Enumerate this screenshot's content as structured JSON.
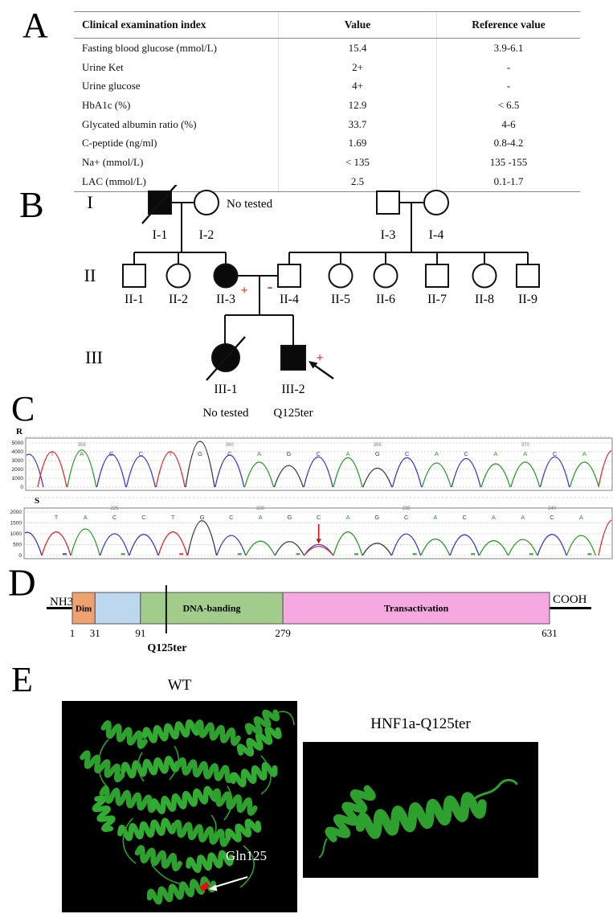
{
  "panels": {
    "a": "A",
    "b": "B",
    "c": "C",
    "d": "D",
    "e": "E"
  },
  "table": {
    "headers": [
      "Clinical examination index",
      "Value",
      "Reference value"
    ],
    "rows": [
      [
        "Fasting blood glucose (mmol/L)",
        "15.4",
        "3.9-6.1"
      ],
      [
        "Urine Ket",
        "2+",
        "-"
      ],
      [
        "Urine glucose",
        "4+",
        "-"
      ],
      [
        "HbA1c (%)",
        "12.9",
        "< 6.5"
      ],
      [
        "Glycated albumin ratio (%)",
        "33.7",
        "4-6"
      ],
      [
        "C-peptide (ng/ml)",
        "1.69",
        "0.8-4.2"
      ],
      [
        "Na+ (mmol/L)",
        "< 135",
        "135 -155"
      ],
      [
        "LAC (mmol/L)",
        "2.5",
        "0.1-1.7"
      ]
    ]
  },
  "pedigree": {
    "generation_labels": [
      "I",
      "II",
      "III"
    ],
    "mark_color": "#e8321e",
    "individuals": [
      {
        "id": "I-1",
        "shape": "square",
        "filled": true,
        "deceased": true
      },
      {
        "id": "I-2",
        "shape": "circle",
        "filled": false,
        "note": "No tested"
      },
      {
        "id": "I-3",
        "shape": "square",
        "filled": false
      },
      {
        "id": "I-4",
        "shape": "circle",
        "filled": false
      },
      {
        "id": "II-1",
        "shape": "square",
        "filled": false
      },
      {
        "id": "II-2",
        "shape": "circle",
        "filled": false
      },
      {
        "id": "II-3",
        "shape": "circle",
        "filled": true,
        "mark": "+"
      },
      {
        "id": "II-4",
        "shape": "square",
        "filled": false,
        "mark": "-"
      },
      {
        "id": "II-5",
        "shape": "circle",
        "filled": false
      },
      {
        "id": "II-6",
        "shape": "circle",
        "filled": false
      },
      {
        "id": "II-7",
        "shape": "square",
        "filled": false
      },
      {
        "id": "II-8",
        "shape": "circle",
        "filled": false
      },
      {
        "id": "II-9",
        "shape": "square",
        "filled": false
      },
      {
        "id": "III-1",
        "shape": "circle",
        "filled": true,
        "deceased": true,
        "note": "No tested"
      },
      {
        "id": "III-2",
        "shape": "square",
        "filled": true,
        "proband": true,
        "mark": "+",
        "note": "Q125ter"
      }
    ]
  },
  "chromatograms": {
    "base_colors": {
      "A": "#2e9b2e",
      "C": "#3a3ad1",
      "G": "#3d3d3d",
      "T": "#e02a2a"
    },
    "arrow_color": "#cc1111",
    "traces": [
      {
        "label": "R",
        "ymax": 5300,
        "y_ticks": [
          "5000",
          "4000",
          "3000",
          "2000",
          "1000",
          "0"
        ],
        "positions": [
          [
            "355",
            1
          ],
          [
            "360",
            6
          ],
          [
            "365",
            11
          ],
          [
            "370",
            16
          ]
        ],
        "bases": [
          "T",
          "A",
          "C",
          "C",
          "T",
          "G",
          "C",
          "A",
          "G",
          "C",
          "A",
          "G",
          "C",
          "A",
          "C",
          "A",
          "A",
          "C",
          "A"
        ],
        "values": [
          4100,
          4300,
          3800,
          3600,
          4100,
          5300,
          3700,
          2900,
          2500,
          3500,
          3400,
          2200,
          3400,
          2800,
          3300,
          2700,
          2900,
          3500,
          2900
        ],
        "edge_left": {
          "b": "C",
          "v": 3800
        },
        "edge_right": {
          "b": "T",
          "v": 4300
        }
      },
      {
        "label": "S",
        "ymax": 2100,
        "y_ticks": [
          "2000",
          "1500",
          "1000",
          "500",
          "0"
        ],
        "positions": [
          [
            "225",
            2
          ],
          [
            "230",
            7
          ],
          [
            "235",
            12
          ],
          [
            "240",
            17
          ]
        ],
        "bases": [
          "T",
          "A",
          "C",
          "C",
          "T",
          "G",
          "C",
          "A",
          "G",
          "C",
          "A",
          "G",
          "C",
          "A",
          "C",
          "A",
          "A",
          "C",
          "A"
        ],
        "values": [
          1120,
          1260,
          1030,
          1000,
          1120,
          1650,
          950,
          680,
          660,
          520,
          1120,
          580,
          1020,
          780,
          980,
          700,
          760,
          1000,
          950
        ],
        "arrow_index": 9,
        "mutant_overlay": {
          "b": "T",
          "v": 430
        },
        "edge_left": {
          "b": "C",
          "v": 1100
        },
        "edge_right": {
          "b": "T",
          "v": 1700
        }
      }
    ]
  },
  "domain_diagram": {
    "n_term": "NH3",
    "c_term": "COOH",
    "scale_numbers": [
      "1",
      "31",
      "91",
      "279",
      "631"
    ],
    "scale_positions": [
      1,
      31,
      91,
      279,
      631
    ],
    "segments": [
      {
        "label": "Dim",
        "start": 1,
        "end": 31,
        "color": "#f0a26e"
      },
      {
        "label": "",
        "start": 31,
        "end": 91,
        "color": "#bdd7ee"
      },
      {
        "label": "DNA-banding",
        "start": 91,
        "end": 279,
        "color": "#a2cc8b"
      },
      {
        "label": "Transactivation",
        "start": 279,
        "end": 631,
        "color": "#f6a9e1"
      }
    ],
    "marker": {
      "label": "Q125ter",
      "position": 125
    }
  },
  "structures": {
    "wt_title": "WT",
    "mutant_title": "HNF1a-Q125ter",
    "residue_label": "Gln125",
    "ribbon_color": "#2da02d",
    "ribbon_color2": "#31ab31",
    "residue_color": "#e01010"
  }
}
